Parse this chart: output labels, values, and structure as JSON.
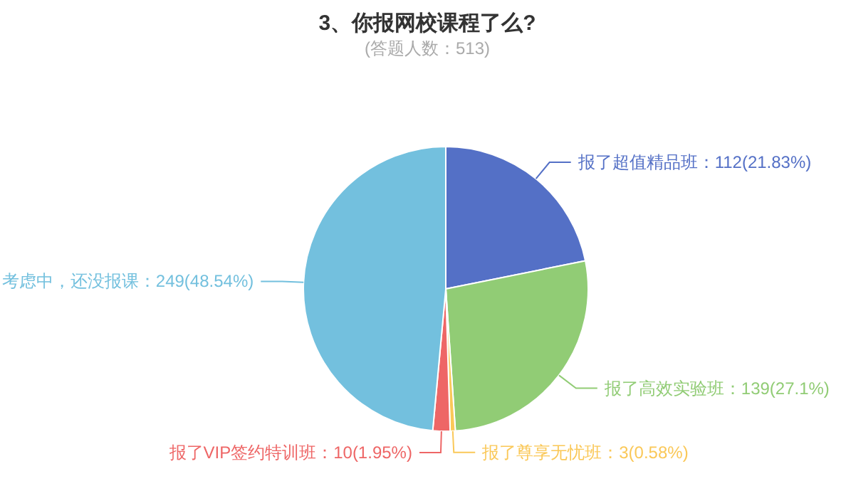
{
  "chart_data": {
    "type": "pie",
    "title": "3、你报网校课程了么?",
    "subtitle": "(答题人数：513)",
    "categories": [
      "报了超值精品班",
      "报了高效实验班",
      "报了尊享无忧班",
      "报了VIP签约特训班",
      "考虑中，还没报课"
    ],
    "values": [
      112,
      139,
      3,
      10,
      249
    ],
    "value_labels": [
      "112(21.83%)",
      "139(27.1%)",
      "3(0.58%)",
      "10(1.95%)",
      "249(48.54%)"
    ],
    "colors": [
      "#5470c6",
      "#91cc75",
      "#fac858",
      "#ee6666",
      "#73c0de"
    ]
  }
}
